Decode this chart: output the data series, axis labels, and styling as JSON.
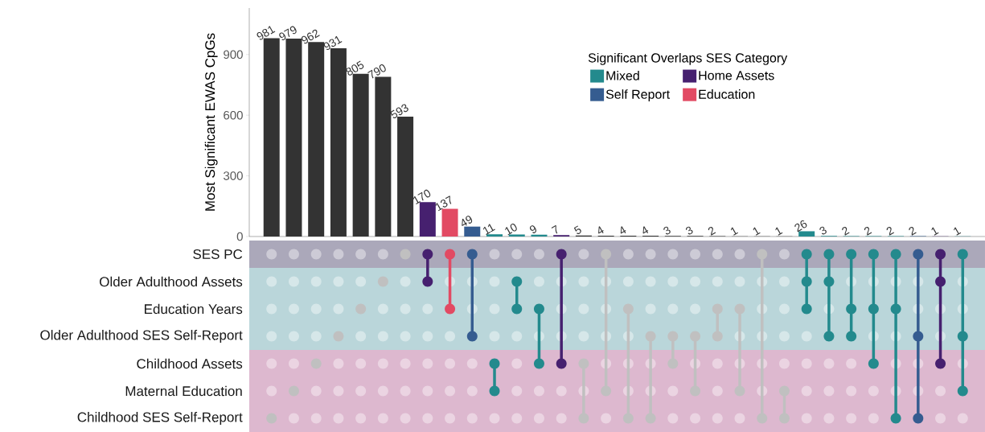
{
  "chart_data": [
    {
      "type": "bar",
      "ylabel": "Most Significant EWAS CpGs",
      "legend_title": "Significant Overlaps SES Category",
      "categories": [
        null,
        null,
        null,
        null,
        null,
        null,
        null,
        null,
        null,
        null,
        null,
        null,
        null,
        null,
        null,
        null,
        null,
        null,
        null,
        null,
        null,
        null,
        null,
        null,
        null,
        null,
        null,
        null,
        null,
        null,
        null,
        null
      ],
      "series": [
        {
          "color": "#333333",
          "values": [
            981,
            979,
            962,
            931,
            805,
            790,
            593,
            null,
            null,
            null,
            null,
            null,
            null,
            null,
            5,
            4,
            4,
            4,
            3,
            3,
            2,
            1,
            1,
            1,
            null,
            null,
            null,
            null,
            null,
            null,
            null,
            null
          ]
        },
        {
          "name": "Mixed",
          "color": "#238a8d",
          "values": [
            null,
            null,
            null,
            null,
            null,
            null,
            null,
            null,
            null,
            null,
            11,
            10,
            9,
            null,
            null,
            null,
            null,
            null,
            null,
            null,
            null,
            null,
            null,
            null,
            26,
            3,
            2,
            2,
            2,
            null,
            null,
            1
          ]
        },
        {
          "name": "Home Assets",
          "color": "#46206f",
          "values": [
            null,
            null,
            null,
            null,
            null,
            null,
            null,
            170,
            null,
            null,
            null,
            null,
            null,
            7,
            null,
            null,
            null,
            null,
            null,
            null,
            null,
            null,
            null,
            null,
            null,
            null,
            null,
            null,
            null,
            null,
            1,
            null
          ]
        },
        {
          "name": "Self Report",
          "color": "#355c90",
          "values": [
            null,
            null,
            null,
            null,
            null,
            null,
            null,
            null,
            null,
            49,
            null,
            null,
            null,
            null,
            null,
            null,
            null,
            null,
            null,
            null,
            null,
            null,
            null,
            null,
            null,
            null,
            null,
            null,
            null,
            2,
            null,
            null
          ]
        },
        {
          "name": "Education",
          "color": "#e24a63",
          "values": [
            null,
            null,
            null,
            null,
            null,
            null,
            null,
            null,
            137,
            null,
            null,
            null,
            null,
            null,
            null,
            null,
            null,
            null,
            null,
            null,
            null,
            null,
            null,
            null,
            null,
            null,
            null,
            null,
            null,
            null,
            null,
            null
          ]
        }
      ],
      "ylim": [
        0,
        1130
      ],
      "yticks": [
        0,
        300,
        600,
        900
      ],
      "data_labels": true,
      "legend": "top"
    },
    {
      "type": "other",
      "categories": [
        "SES PC",
        "Older Adulthood Assets",
        "Education Years",
        "Older Adulthood SES Self-Report",
        "Childhood Assets",
        "Maternal Education",
        "Childhood SES Self-Report"
      ]
    }
  ]
}
